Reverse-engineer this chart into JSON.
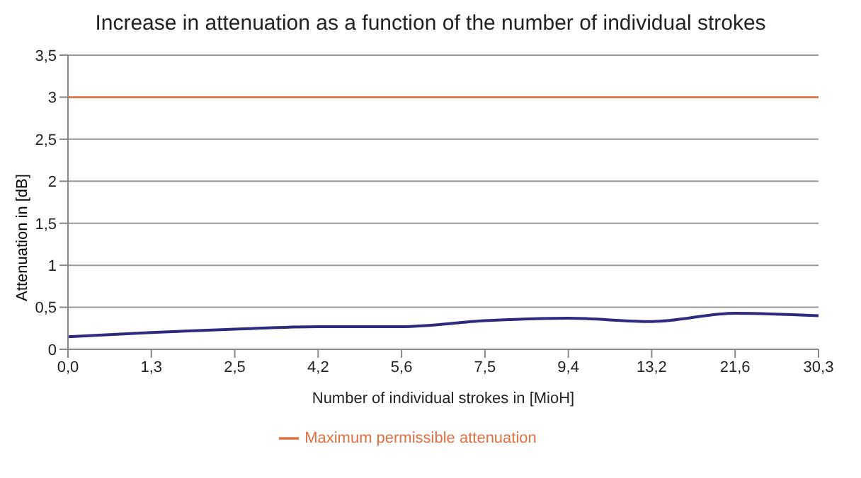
{
  "chart_data": {
    "type": "line",
    "title": "Increase in attenuation as a function of the number of individual strokes",
    "xlabel": "Number of individual strokes in [MioH]",
    "ylabel": "Attenuation in [dB]",
    "categories": [
      "0,0",
      "1,3",
      "2,5",
      "4,2",
      "5,6",
      "7,5",
      "9,4",
      "13,2",
      "21,6",
      "30,3"
    ],
    "series": [
      {
        "color": "#2e2a7e",
        "values": [
          0.15,
          0.2,
          0.24,
          0.27,
          0.27,
          0.34,
          0.37,
          0.33,
          0.43,
          0.4
        ]
      },
      {
        "name": "Maximum permissible attenuation",
        "color": "#e07040",
        "values": [
          3,
          3,
          3,
          3,
          3,
          3,
          3,
          3,
          3,
          3
        ]
      }
    ],
    "ylim": [
      0,
      3.5
    ],
    "yticks": [
      {
        "value": 0,
        "label": "0"
      },
      {
        "value": 0.5,
        "label": "0,5"
      },
      {
        "value": 1,
        "label": "1"
      },
      {
        "value": 1.5,
        "label": "1,5"
      },
      {
        "value": 2,
        "label": "2"
      },
      {
        "value": 2.5,
        "label": "2,5"
      },
      {
        "value": 3,
        "label": "3"
      },
      {
        "value": 3.5,
        "label": "3,5"
      }
    ],
    "grid": "y",
    "legend": "bottom",
    "marker": "none",
    "line_style": "solid"
  }
}
